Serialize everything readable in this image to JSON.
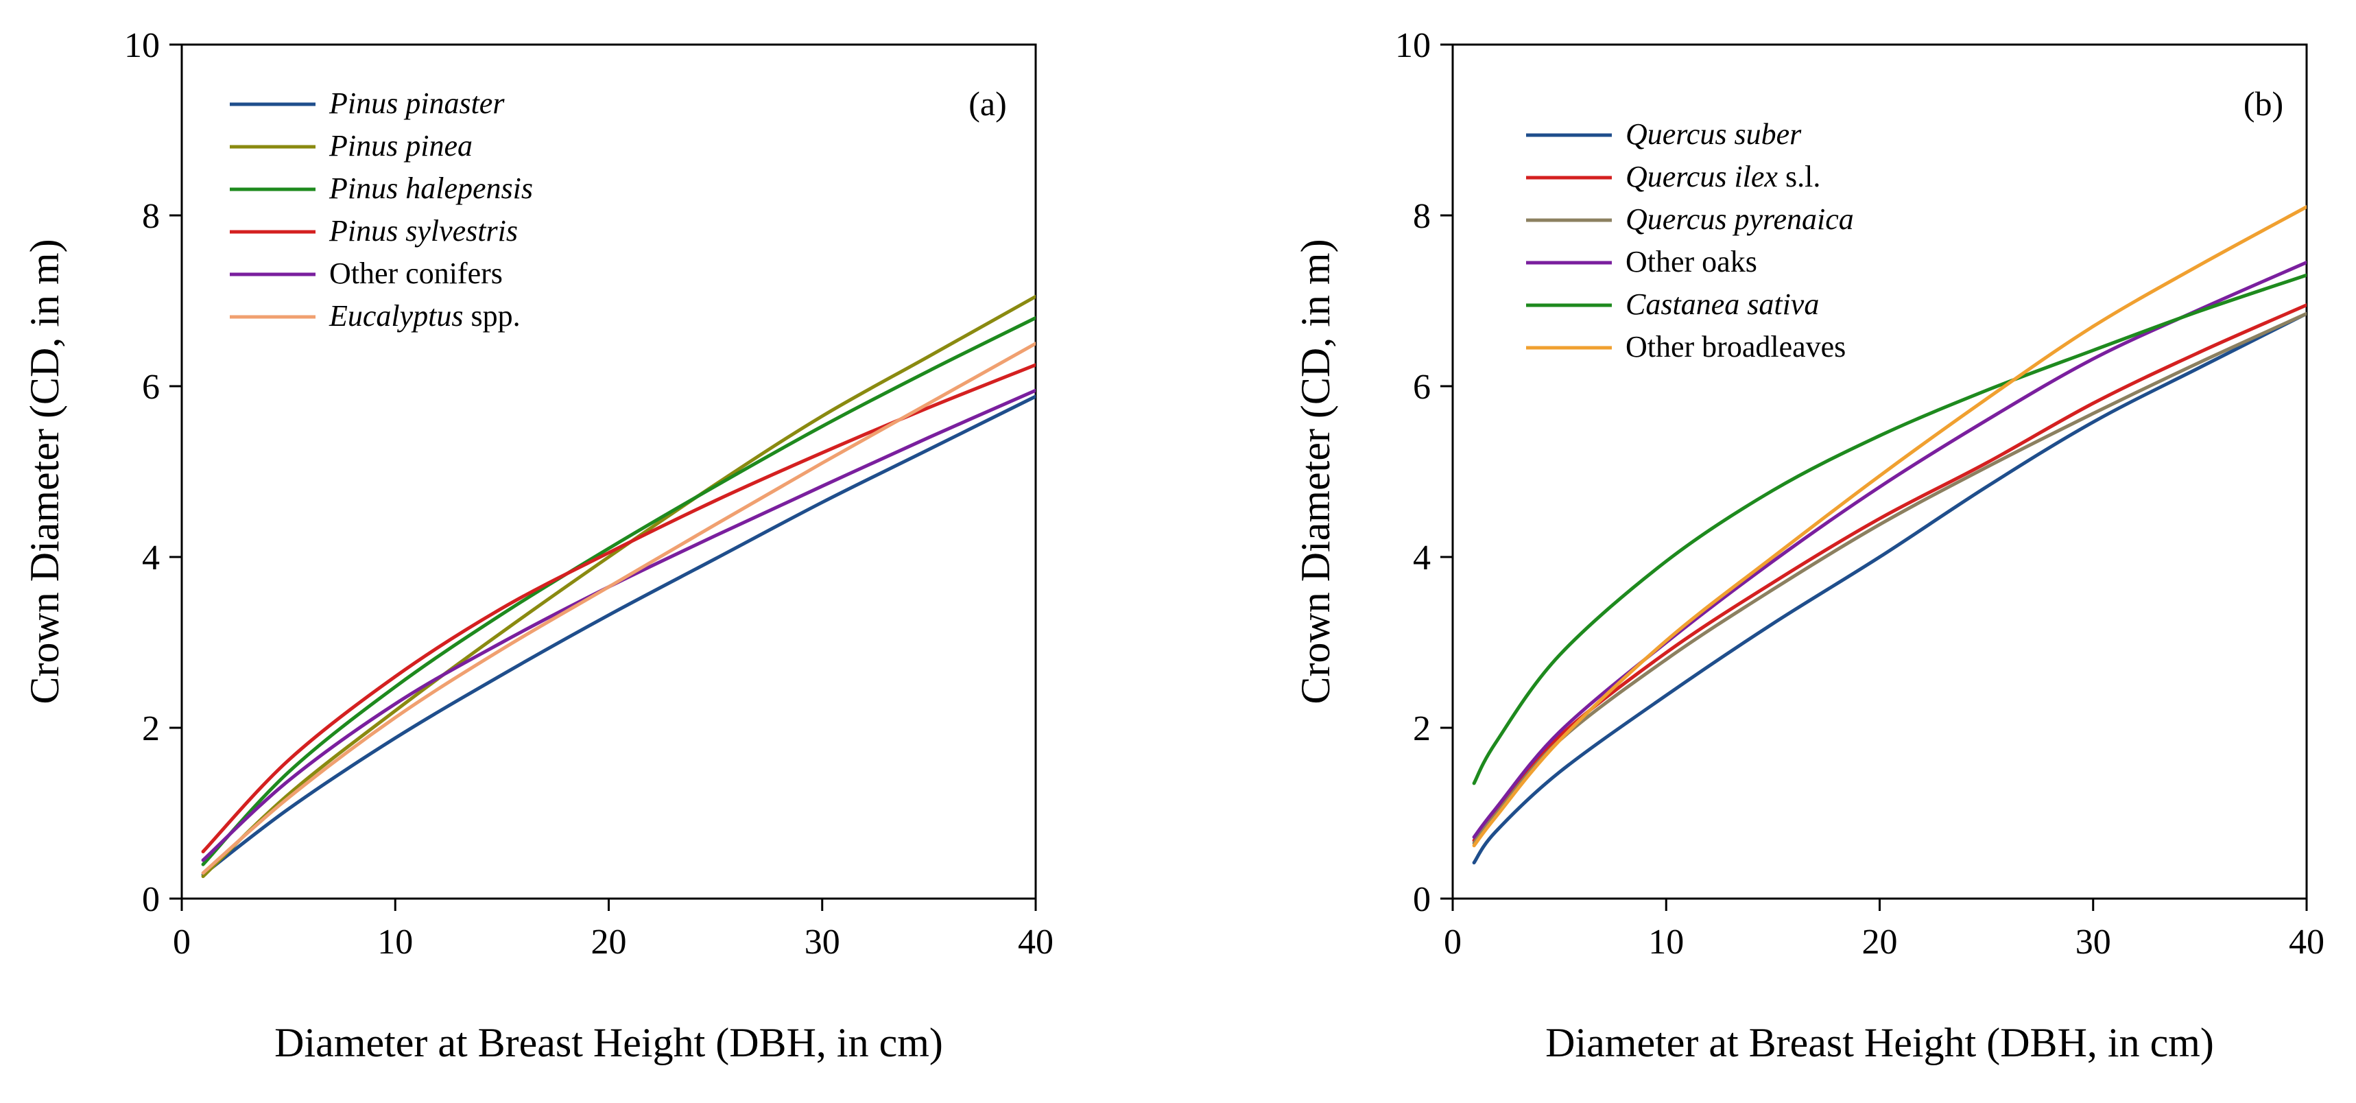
{
  "chart_data": [
    {
      "type": "line",
      "panel_label": "(a)",
      "xlabel": "Diameter at Breast Height (DBH, in cm)",
      "ylabel": "Crown Diameter (CD, in m)",
      "xlim": [
        0,
        40
      ],
      "ylim": [
        0,
        10
      ],
      "xticks": [
        0,
        10,
        20,
        30,
        40
      ],
      "yticks": [
        0,
        2,
        4,
        6,
        8,
        10
      ],
      "legend_position": "top-left",
      "x": [
        1,
        5,
        10,
        15,
        20,
        25,
        30,
        35,
        40
      ],
      "series": [
        {
          "name": "Pinus pinaster",
          "italic": "Pinus pinaster",
          "suffix": "",
          "color": "#1f4e8c",
          "values": [
            0.28,
            1.05,
            1.88,
            2.62,
            3.32,
            3.98,
            4.64,
            5.26,
            5.88
          ]
        },
        {
          "name": "Pinus pinea",
          "italic": "Pinus pinea",
          "suffix": "",
          "color": "#8a8a10",
          "values": [
            0.26,
            1.22,
            2.2,
            3.12,
            4.0,
            4.85,
            5.65,
            6.35,
            7.05
          ]
        },
        {
          "name": "Pinus halepensis",
          "italic": "Pinus halepensis",
          "suffix": "",
          "color": "#1e8a1e",
          "values": [
            0.4,
            1.48,
            2.48,
            3.33,
            4.1,
            4.83,
            5.53,
            6.18,
            6.8
          ]
        },
        {
          "name": "Pinus sylvestris",
          "italic": "Pinus sylvestris",
          "suffix": "",
          "color": "#d42020",
          "values": [
            0.55,
            1.62,
            2.6,
            3.4,
            4.05,
            4.66,
            5.22,
            5.75,
            6.25
          ]
        },
        {
          "name": "Other conifers",
          "italic": "",
          "suffix": "Other conifers",
          "color": "#7a1f9e",
          "values": [
            0.45,
            1.38,
            2.28,
            3.0,
            3.65,
            4.25,
            4.83,
            5.4,
            5.95
          ]
        },
        {
          "name": "Eucalyptus spp.",
          "italic": "Eucalyptus",
          "suffix": " spp.",
          "color": "#f0a070",
          "values": [
            0.3,
            1.18,
            2.12,
            2.92,
            3.65,
            4.38,
            5.1,
            5.8,
            6.5
          ]
        }
      ]
    },
    {
      "type": "line",
      "panel_label": "(b)",
      "xlabel": "Diameter at Breast Height (DBH, in cm)",
      "ylabel": "Crown Diameter (CD, in m)",
      "xlim": [
        0,
        40
      ],
      "ylim": [
        0,
        10
      ],
      "xticks": [
        0,
        10,
        20,
        30,
        40
      ],
      "yticks": [
        0,
        2,
        4,
        6,
        8,
        10
      ],
      "legend_position": "top-left",
      "x": [
        1,
        2,
        5,
        10,
        15,
        20,
        25,
        30,
        35,
        40
      ],
      "series": [
        {
          "name": "Quercus suber",
          "italic": "Quercus suber",
          "suffix": "",
          "color": "#1f4e8c",
          "values": [
            0.42,
            0.78,
            1.48,
            2.38,
            3.22,
            4.0,
            4.82,
            5.58,
            6.22,
            6.85
          ]
        },
        {
          "name": "Quercus ilex s.l.",
          "italic": "Quercus ilex",
          "suffix": " s.l.",
          "color": "#d42020",
          "values": [
            0.68,
            1.02,
            1.9,
            2.88,
            3.7,
            4.45,
            5.1,
            5.8,
            6.4,
            6.95
          ]
        },
        {
          "name": "Quercus pyrenaica",
          "italic": "Quercus pyrenaica",
          "suffix": "",
          "color": "#8c8060",
          "values": [
            0.65,
            0.98,
            1.85,
            2.8,
            3.62,
            4.38,
            5.05,
            5.68,
            6.28,
            6.85
          ]
        },
        {
          "name": "Other oaks",
          "italic": "",
          "suffix": "Other oaks",
          "color": "#7a1f9e",
          "values": [
            0.72,
            1.05,
            1.95,
            3.0,
            3.95,
            4.82,
            5.6,
            6.32,
            6.9,
            7.45
          ]
        },
        {
          "name": "Castanea sativa",
          "italic": "Castanea sativa",
          "suffix": "",
          "color": "#1e8a1e",
          "values": [
            1.35,
            1.82,
            2.85,
            3.95,
            4.78,
            5.42,
            5.95,
            6.42,
            6.88,
            7.3
          ]
        },
        {
          "name": "Other broadleaves",
          "italic": "",
          "suffix": "Other broadleaves",
          "color": "#f0a030",
          "values": [
            0.62,
            0.95,
            1.85,
            3.02,
            4.0,
            4.95,
            5.85,
            6.7,
            7.42,
            8.1
          ]
        }
      ]
    }
  ]
}
